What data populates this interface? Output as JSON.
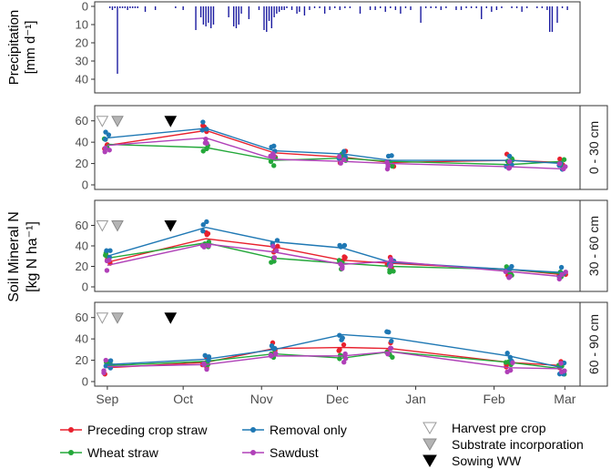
{
  "chart_data": {
    "type": "scatter",
    "title": "",
    "x_ticks": [
      "Sep",
      "Oct",
      "Nov",
      "Dec",
      "Jan",
      "Feb",
      "Mar"
    ],
    "x_tick_days": [
      0,
      30,
      61,
      91,
      122,
      153,
      181
    ],
    "xlim_days": [
      -5,
      187
    ],
    "precipitation": {
      "ylabel_line1": "Precipitation",
      "ylabel_line2": "[mm d⁻¹]",
      "ylim": [
        0,
        45
      ],
      "y_ticks": [
        0,
        10,
        20,
        30,
        40
      ],
      "days": [
        1,
        2,
        3,
        4,
        5,
        6,
        7,
        8,
        9,
        10,
        11,
        12,
        15,
        19,
        27,
        30,
        35,
        37,
        38,
        39,
        40,
        41,
        42,
        48,
        50,
        51,
        52,
        53,
        56,
        60,
        62,
        63,
        64,
        65,
        66,
        67,
        68,
        69,
        70,
        71,
        73,
        75,
        76,
        78,
        80,
        82,
        84,
        86,
        88,
        90,
        92,
        94,
        96,
        100,
        104,
        106,
        108,
        110,
        112,
        114,
        116,
        118,
        120,
        124,
        126,
        128,
        130,
        132,
        134,
        138,
        140,
        142,
        144,
        146,
        148,
        150,
        152,
        154,
        156,
        160,
        162,
        164,
        166,
        170,
        172,
        174,
        175,
        176,
        178,
        180,
        182
      ],
      "mm": [
        1,
        2,
        1,
        37,
        1,
        1,
        1,
        2,
        1,
        1,
        1,
        1,
        3,
        2,
        1,
        2,
        13,
        6,
        10,
        11,
        9,
        12,
        10,
        6,
        11,
        12,
        10,
        4,
        7,
        2,
        13,
        14,
        8,
        12,
        6,
        4,
        3,
        2,
        2,
        1,
        2,
        4,
        3,
        5,
        2,
        1,
        1,
        4,
        2,
        1,
        2,
        1,
        1,
        4,
        2,
        2,
        1,
        3,
        1,
        2,
        4,
        1,
        2,
        9,
        1,
        1,
        1,
        2,
        1,
        2,
        2,
        1,
        1,
        1,
        7,
        1,
        3,
        2,
        1,
        1,
        1,
        3,
        1,
        1,
        1,
        2,
        14,
        14,
        9,
        1,
        2
      ]
    },
    "y_axis_title_line1": "Soil Mineral N",
    "y_axis_title_line2": "[kg N ha⁻¹]",
    "panels": [
      {
        "strip_label": "0 - 30 cm",
        "ylim": [
          0,
          70
        ],
        "y_ticks": [
          0,
          20,
          40,
          60
        ],
        "sampling_days": [
          0,
          39,
          66,
          93,
          112,
          159,
          180
        ],
        "series": [
          {
            "name": "Preceding crop straw",
            "color": "#e8212e",
            "means": [
              37,
              51,
              30,
              26,
              21,
              23,
              21
            ]
          },
          {
            "name": "Wheat straw",
            "color": "#24a83a",
            "means": [
              38,
              35,
              23,
              25,
              22,
              19,
              22
            ]
          },
          {
            "name": "Removal only",
            "color": "#1f78b4",
            "means": [
              44,
              53,
              32,
              29,
              23,
              23,
              20
            ]
          },
          {
            "name": "Sawdust",
            "color": "#b040b8",
            "means": [
              37,
              44,
              24,
              22,
              20,
              17,
              15
            ]
          }
        ]
      },
      {
        "strip_label": "30 - 60 cm",
        "ylim": [
          0,
          80
        ],
        "y_ticks": [
          0,
          20,
          40,
          60
        ],
        "sampling_days": [
          0,
          39,
          66,
          93,
          112,
          159,
          180
        ],
        "series": [
          {
            "name": "Preceding crop straw",
            "color": "#e8212e",
            "means": [
              24,
              47,
              39,
              26,
              23,
              17,
              12
            ]
          },
          {
            "name": "Wheat straw",
            "color": "#24a83a",
            "means": [
              28,
              43,
              28,
              23,
              20,
              17,
              13
            ]
          },
          {
            "name": "Removal only",
            "color": "#1f78b4",
            "means": [
              30,
              58,
              44,
              38,
              24,
              17,
              14
            ]
          },
          {
            "name": "Sawdust",
            "color": "#b040b8",
            "means": [
              21,
              42,
              34,
              22,
              25,
              15,
              10
            ]
          }
        ]
      },
      {
        "strip_label": "60 - 90 cm",
        "ylim": [
          0,
          70
        ],
        "y_ticks": [
          0,
          20,
          40,
          60
        ],
        "sampling_days": [
          0,
          39,
          66,
          93,
          112,
          159,
          180
        ],
        "series": [
          {
            "name": "Preceding crop straw",
            "color": "#e8212e",
            "means": [
              13,
              18,
              31,
              32,
              31,
              18,
              15
            ]
          },
          {
            "name": "Wheat straw",
            "color": "#24a83a",
            "means": [
              15,
              19,
              26,
              22,
              28,
              18,
              12
            ]
          },
          {
            "name": "Removal only",
            "color": "#1f78b4",
            "means": [
              16,
              21,
              30,
              44,
              41,
              24,
              13
            ]
          },
          {
            "name": "Sawdust",
            "color": "#b040b8",
            "means": [
              14,
              16,
              24,
              24,
              28,
              13,
              12
            ]
          }
        ]
      }
    ],
    "events": [
      {
        "name": "Harvest pre crop",
        "day": -2,
        "y": 60,
        "fill": "#ffffff",
        "stroke": "#9a9a9a"
      },
      {
        "name": "Substrate incorporation",
        "day": 4,
        "y": 60,
        "fill": "#b4b4b4",
        "stroke": "#8a8a8a"
      },
      {
        "name": "Sowing WW",
        "day": 25,
        "y": 60,
        "fill": "#000000",
        "stroke": "#000000"
      }
    ],
    "legend": {
      "position": "bottom",
      "treatments": [
        "Preceding crop straw",
        "Removal only",
        "Wheat straw",
        "Sawdust"
      ],
      "events": [
        "Harvest pre crop",
        "Substrate incorporation",
        "Sowing WW"
      ]
    }
  }
}
